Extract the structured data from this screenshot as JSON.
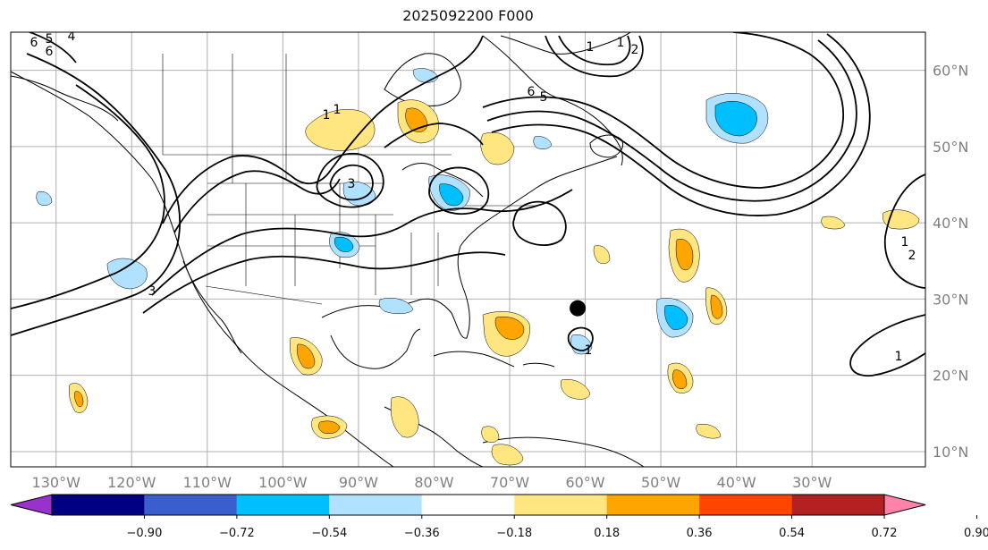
{
  "title": "2025092200 F000",
  "map": {
    "lon_ticks": [
      "130°W",
      "120°W",
      "110°W",
      "100°W",
      "90°W",
      "80°W",
      "70°W",
      "60°W",
      "50°W",
      "40°W",
      "30°W"
    ],
    "lat_ticks": [
      "60°N",
      "50°N",
      "40°N",
      "30°N",
      "20°N",
      "10°N"
    ],
    "lon_values": [
      -130,
      -120,
      -110,
      -100,
      -90,
      -80,
      -70,
      -60,
      -50,
      -40,
      -30
    ],
    "lat_values": [
      60,
      50,
      40,
      30,
      20,
      10
    ],
    "extent": {
      "lon": [
        -136,
        -15
      ],
      "lat": [
        8,
        65
      ]
    },
    "grid": true,
    "marker": {
      "lon": -61,
      "lat": 28.8
    },
    "contour_labels": [
      "6",
      "5",
      "4",
      "3",
      "6",
      "1",
      "6",
      "5",
      "1",
      "3",
      "1",
      "2",
      "1",
      "1",
      "1",
      "2",
      "1"
    ]
  },
  "colorbar": {
    "ticks": [
      "−0.90",
      "−0.72",
      "−0.54",
      "−0.36",
      "−0.18",
      "0.18",
      "0.36",
      "0.54",
      "0.72",
      "0.90"
    ],
    "colors": [
      "#9932cc",
      "#000080",
      "#3a5fcd",
      "#00bfff",
      "#b0e2ff",
      "#ffffff",
      "#ffe680",
      "#ffa500",
      "#ff4500",
      "#b22222",
      "#ff82ab"
    ]
  }
}
